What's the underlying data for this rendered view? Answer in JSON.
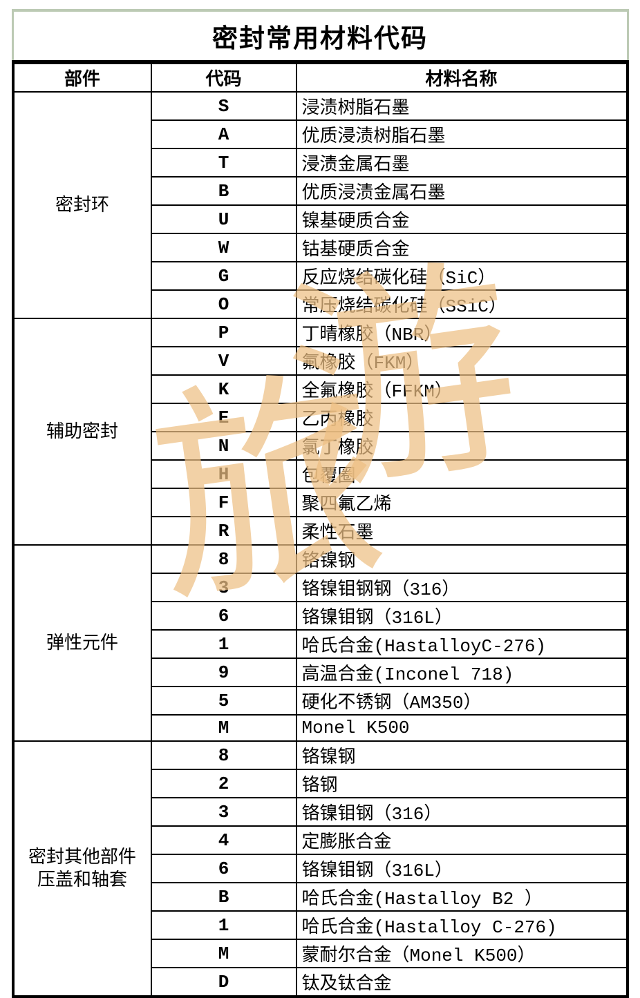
{
  "title": "密封常用材料代码",
  "columns": {
    "part": "部件",
    "code": "代码",
    "material": "材料名称"
  },
  "sections": [
    {
      "component_lines": [
        "密封环"
      ],
      "rows": [
        {
          "code": "S",
          "material": "浸渍树脂石墨"
        },
        {
          "code": "A",
          "material": "优质浸渍树脂石墨"
        },
        {
          "code": "T",
          "material": "浸渍金属石墨"
        },
        {
          "code": "B",
          "material": "优质浸渍金属石墨"
        },
        {
          "code": "U",
          "material": "镍基硬质合金"
        },
        {
          "code": "W",
          "material": "钴基硬质合金"
        },
        {
          "code": "G",
          "material": "反应烧结碳化硅（SiC）"
        },
        {
          "code": "O",
          "material": "常压烧结碳化硅（SSiC）"
        }
      ]
    },
    {
      "component_lines": [
        "辅助密封"
      ],
      "rows": [
        {
          "code": "P",
          "material": "丁晴橡胶（NBR）"
        },
        {
          "code": "V",
          "material": "氟橡胶（FKM）"
        },
        {
          "code": "K",
          "material": "全氟橡胶（FFKM）"
        },
        {
          "code": "E",
          "material": "乙丙橡胶"
        },
        {
          "code": "N",
          "material": "氯丁橡胶"
        },
        {
          "code": "H",
          "material": "包覆圈"
        },
        {
          "code": "F",
          "material": "聚四氟乙烯"
        },
        {
          "code": "R",
          "material": "柔性石墨"
        }
      ]
    },
    {
      "component_lines": [
        "弹性元件"
      ],
      "rows": [
        {
          "code": "8",
          "material": "铬镍钢"
        },
        {
          "code": "3",
          "material": "铬镍钼钢钢（316）"
        },
        {
          "code": "6",
          "material": "铬镍钼钢（316L）"
        },
        {
          "code": "1",
          "material": "哈氏合金(HastalloyC-276)"
        },
        {
          "code": "9",
          "material": "高温合金(Inconel 718)"
        },
        {
          "code": "5",
          "material": "硬化不锈钢（AM350）"
        },
        {
          "code": "M",
          "material": "Monel K500"
        }
      ]
    },
    {
      "component_lines": [
        "密封其他部件",
        "压盖和轴套"
      ],
      "rows": [
        {
          "code": "8",
          "material": "铬镍钢"
        },
        {
          "code": "2",
          "material": "铬钢"
        },
        {
          "code": "3",
          "material": "铬镍钼钢（316）"
        },
        {
          "code": "4",
          "material": "定膨胀合金"
        },
        {
          "code": "6",
          "material": "铬镍钼钢（316L）"
        },
        {
          "code": "B",
          "material": "哈氏合金(Hastalloy B2 ）"
        },
        {
          "code": "1",
          "material": "哈氏合金(Hastalloy C-276)"
        },
        {
          "code": "M",
          "material": "蒙耐尔合金（Monel K500）"
        },
        {
          "code": "D",
          "material": "钛及钛合金"
        }
      ]
    }
  ],
  "watermark": {
    "chars": [
      "旅",
      "游"
    ],
    "color": "#eec084"
  },
  "colors": {
    "title_border_green": "#bccab4",
    "table_border": "#000000",
    "text": "#000000",
    "background": "#ffffff"
  }
}
